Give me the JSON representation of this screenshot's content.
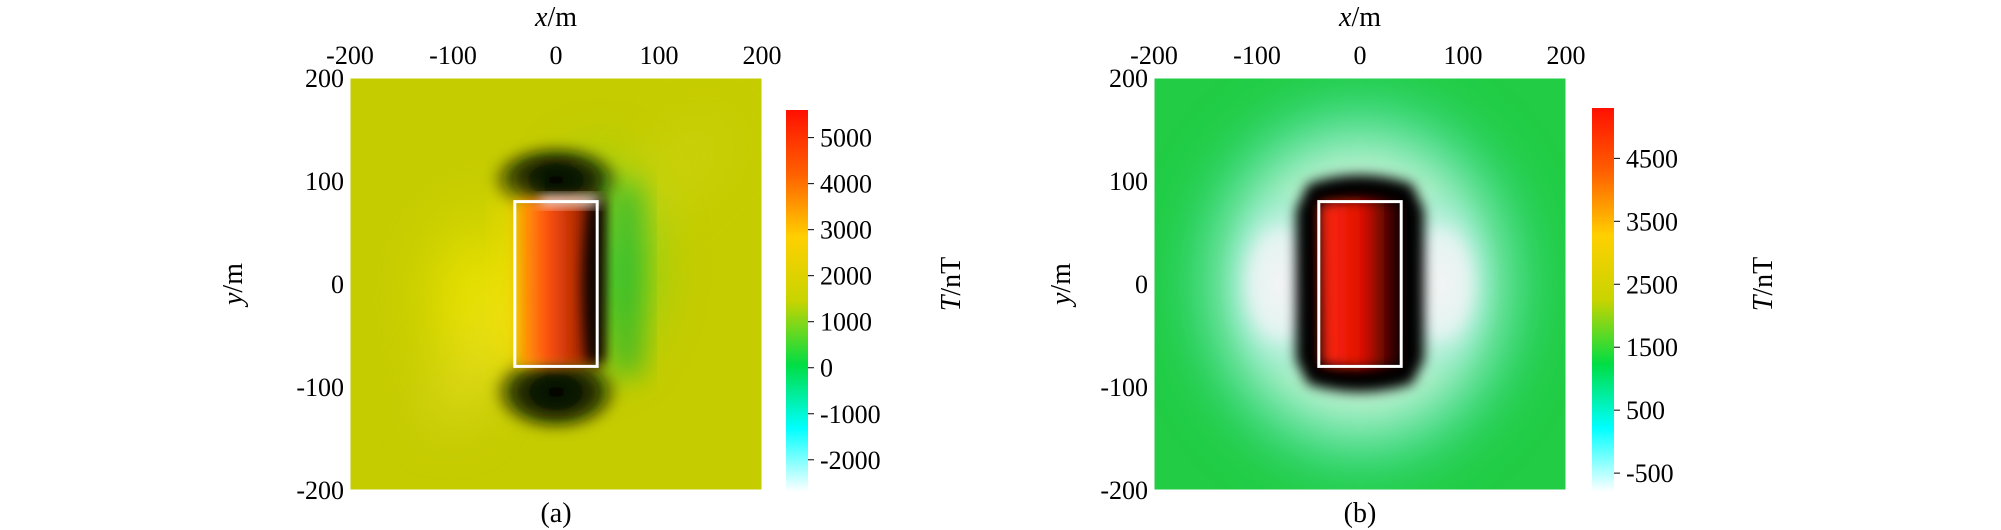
{
  "chart_data": [
    {
      "type": "heatmap",
      "caption": "(a)",
      "xlabel_var": "x",
      "xlabel_unit": "/m",
      "ylabel_var": "y",
      "ylabel_unit": "/m",
      "xlim": [
        -200,
        200
      ],
      "ylim": [
        -200,
        200
      ],
      "x_ticks": [
        -200,
        -100,
        0,
        100,
        200
      ],
      "y_ticks": [
        -200,
        -100,
        0,
        100,
        200
      ],
      "grid": false,
      "body_outline": {
        "x": [
          -40,
          40
        ],
        "y": [
          -80,
          80
        ]
      },
      "colorbar": {
        "label_var": "T",
        "label_unit": "/nT",
        "range": [
          -2700,
          5600
        ],
        "ticks": [
          5000,
          4000,
          3000,
          2000,
          1000,
          0,
          -1000,
          -2000
        ],
        "colors": [
          "#ffffff",
          "#00ffff",
          "#00dd44",
          "#c8d400",
          "#ffd000",
          "#ff6000",
          "#ff1000"
        ]
      },
      "background_color": "#c5cc00",
      "features": [
        {
          "kind": "high",
          "cx": -5,
          "cy": 10,
          "value": 5000
        },
        {
          "kind": "low",
          "cx": 0,
          "cy": 95,
          "value": -2500
        },
        {
          "kind": "low",
          "cx": 0,
          "cy": -95,
          "value": -2500
        }
      ]
    },
    {
      "type": "heatmap",
      "caption": "(b)",
      "xlabel_var": "x",
      "xlabel_unit": "/m",
      "ylabel_var": "y",
      "ylabel_unit": "/m",
      "xlim": [
        -200,
        200
      ],
      "ylim": [
        -200,
        200
      ],
      "x_ticks": [
        -200,
        -100,
        0,
        100,
        200
      ],
      "y_ticks": [
        -200,
        -100,
        0,
        100,
        200
      ],
      "grid": false,
      "body_outline": {
        "x": [
          -40,
          40
        ],
        "y": [
          -80,
          80
        ]
      },
      "colorbar": {
        "label_var": "T",
        "label_unit": "/nT",
        "range": [
          -800,
          5300
        ],
        "ticks": [
          4500,
          3500,
          2500,
          1500,
          500,
          -500
        ],
        "colors": [
          "#ffffff",
          "#00ffff",
          "#00dd44",
          "#c8d400",
          "#ffd000",
          "#ff6000",
          "#ff1000"
        ]
      },
      "background_color": "#22cc44",
      "features": [
        {
          "kind": "high",
          "cx": 0,
          "cy": 0,
          "value": 4500
        },
        {
          "kind": "low",
          "cx": -95,
          "cy": 0,
          "value": -700
        },
        {
          "kind": "low",
          "cx": 95,
          "cy": 0,
          "value": -700
        }
      ]
    }
  ]
}
